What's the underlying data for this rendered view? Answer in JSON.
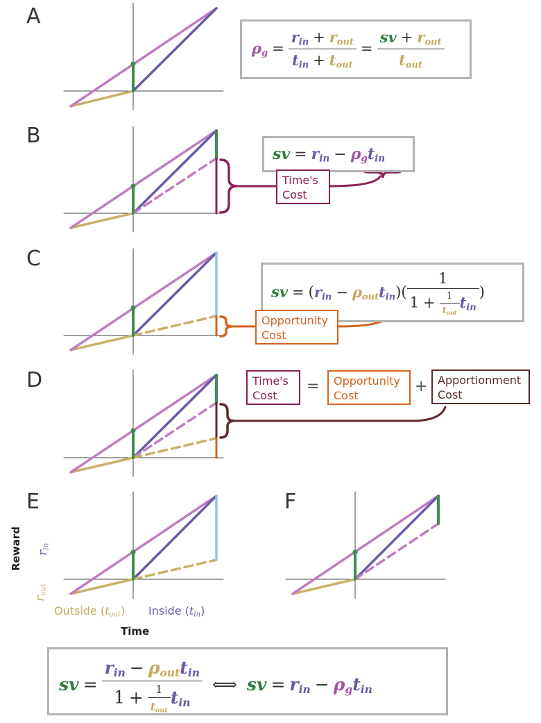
{
  "panels": [
    "A",
    "B",
    "C",
    "D",
    "E",
    "F"
  ],
  "labels": {
    "times_cost": [
      "Time's",
      "Cost"
    ],
    "opportunity_cost": [
      "Opportunity",
      "Cost"
    ],
    "apportionment_cost": [
      "Apportionment",
      "Cost"
    ]
  },
  "axes": {
    "y_label": "Reward",
    "r_out": "r",
    "r_out_sub": "out",
    "r_in": "r",
    "r_in_sub": "in",
    "outside": "Outside (",
    "outside_t": "t",
    "outside_sub": "out",
    "inside": "Inside (",
    "inside_t": "t",
    "inside_sub": "in",
    "close": ")",
    "x_label": "Time"
  },
  "colors": {
    "green": "#3c8c4e",
    "purple": "#6a5aa8",
    "gold": "#c9b06a",
    "pink": "#c07cc0",
    "light_blue": "#8fc8ec",
    "orange": "#d4631c",
    "maroon": "#8a2057",
    "brown": "#5e2a2a",
    "box_gray": "#b3b3b3"
  },
  "equations": {
    "eqA": "rho_g = (r_in + r_out)/(t_in + t_out) = (sv + r_out)/t_out",
    "eqB": "sv = r_in - rho_g t_in",
    "eqC": "sv = (r_in - rho_out t_in)(1/(1 + t_in/t_out))",
    "eqFinal": "sv = (r_in - rho_out t_in)/(1 + t_in/t_out) <=> sv = r_in - rho_g t_in"
  }
}
